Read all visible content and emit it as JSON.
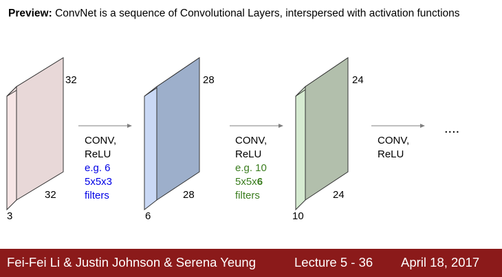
{
  "title": {
    "bold": "Preview:",
    "text": " ConvNet is a sequence of Convolutional Layers, interspersed with activation functions"
  },
  "volumes": [
    {
      "height": "32",
      "width": "32",
      "depth": "3",
      "face_color": "#e8d8d8",
      "edge_color": "#f7e6e6"
    },
    {
      "height": "28",
      "width": "28",
      "depth": "6",
      "face_color": "#9dafcb",
      "edge_color": "#c9d8f5"
    },
    {
      "height": "24",
      "width": "24",
      "depth": "10",
      "face_color": "#b2bfac",
      "edge_color": "#d6ebd1"
    }
  ],
  "steps": [
    {
      "op1": "CONV,",
      "op2": "ReLU",
      "ex1": "e.g. 6",
      "ex2": "5x5x3",
      "ex3": "filters",
      "color": "#0000e6"
    },
    {
      "op1": "CONV,",
      "op2": "ReLU",
      "ex1": "e.g. 10",
      "ex2a": "5x5x",
      "ex2b": "6",
      "ex3": "filters",
      "color": "#3a7d1e"
    },
    {
      "op1": "CONV,",
      "op2": "ReLU"
    }
  ],
  "ellipsis": "....",
  "footer": {
    "authors": "Fei-Fei Li & Justin Johnson & Serena Yeung",
    "lecture": "Lecture 5 - 36",
    "date": "April 18, 2017",
    "bg_color": "#8b1a1a"
  }
}
